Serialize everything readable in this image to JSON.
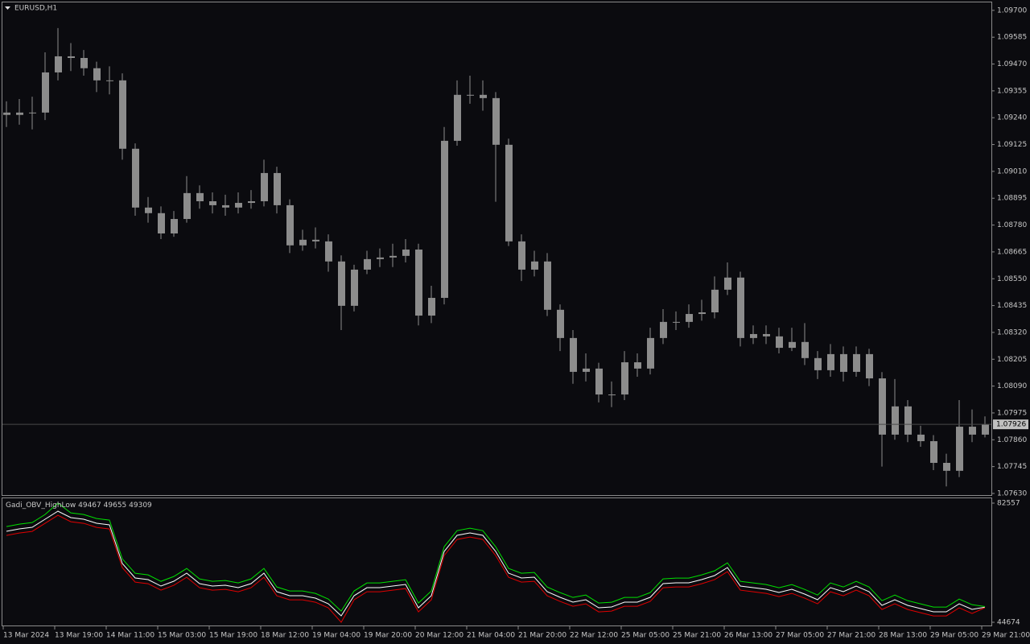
{
  "chart_data": [
    {
      "type": "candlestick",
      "title": "EURUSD,H1",
      "color": "#8c8c8c",
      "price_line_color": "#4a4a4a",
      "categories": [
        "13 Mar 2024",
        null,
        null,
        null,
        "13 Mar 19:00",
        null,
        null,
        null,
        "14 Mar 11:00",
        null,
        null,
        null,
        "15 Mar 03:00",
        null,
        null,
        null,
        "15 Mar 19:00",
        null,
        null,
        null,
        "18 Mar 12:00",
        null,
        null,
        null,
        "19 Mar 04:00",
        null,
        null,
        null,
        "19 Mar 20:00",
        null,
        null,
        null,
        "20 Mar 12:00",
        null,
        null,
        null,
        "21 Mar 04:00",
        null,
        null,
        null,
        "21 Mar 20:00",
        null,
        null,
        null,
        "22 Mar 12:00",
        null,
        null,
        null,
        "25 Mar 05:00",
        null,
        null,
        null,
        "25 Mar 21:00",
        null,
        null,
        null,
        "26 Mar 13:00",
        null,
        null,
        null,
        "27 Mar 05:00",
        null,
        null,
        null,
        "27 Mar 21:00",
        null,
        null,
        null,
        "28 Mar 13:00",
        null,
        null,
        null,
        "29 Mar 05:00",
        null,
        null,
        null,
        "29 Mar 21:00"
      ],
      "open": [
        1.09262,
        1.09252,
        1.09262,
        1.09262,
        1.09434,
        1.09503,
        1.09496,
        1.09452,
        1.094,
        1.094,
        1.09107,
        1.08855,
        1.08831,
        1.08744,
        1.08806,
        1.08917,
        1.08882,
        1.08865,
        1.08855,
        1.08875,
        1.08882,
        1.09003,
        1.08865,
        1.08693,
        1.08717,
        1.0871,
        1.08624,
        1.08434,
        1.08589,
        1.08634,
        1.08641,
        1.08648,
        1.08675,
        1.08392,
        1.08468,
        1.09141,
        1.09338,
        1.09338,
        1.09324,
        1.09124,
        1.0871,
        1.08589,
        1.08624,
        1.08417,
        1.08296,
        1.08151,
        1.08165,
        1.08054,
        1.08054,
        1.08192,
        1.08165,
        1.08296,
        1.08365,
        1.08365,
        1.08399,
        1.08406,
        1.08503,
        1.08555,
        1.08296,
        1.08313,
        1.08303,
        1.08254,
        1.08279,
        1.0821,
        1.08158,
        1.08227,
        1.08151,
        1.08227,
        1.08123,
        1.07882,
        1.08003,
        1.07882,
        1.07854,
        1.07761,
        1.07727,
        1.07916,
        1.07882
      ],
      "high": [
        1.0931,
        1.0932,
        1.0933,
        1.0952,
        1.09624,
        1.0956,
        1.0953,
        1.0948,
        1.0946,
        1.0943,
        1.0913,
        1.089,
        1.0886,
        1.0884,
        1.0899,
        1.0895,
        1.0892,
        1.0891,
        1.0892,
        1.0893,
        1.0906,
        1.0903,
        1.0889,
        1.0876,
        1.0877,
        1.0874,
        1.0865,
        1.0861,
        1.0867,
        1.0868,
        1.087,
        1.0872,
        1.087,
        1.0852,
        1.092,
        1.094,
        1.0942,
        1.094,
        1.0935,
        1.0915,
        1.0874,
        1.0867,
        1.0866,
        1.0844,
        1.0833,
        1.0823,
        1.0819,
        1.0811,
        1.0824,
        1.0823,
        1.0834,
        1.0842,
        1.0841,
        1.0844,
        1.0846,
        1.0856,
        1.0862,
        1.0858,
        1.0835,
        1.0835,
        1.0834,
        1.0834,
        1.0836,
        1.0824,
        1.0827,
        1.0826,
        1.0826,
        1.0825,
        1.0815,
        1.0812,
        1.0803,
        1.0792,
        1.0788,
        1.078,
        1.0803,
        1.0799,
        1.0796
      ],
      "low": [
        1.092,
        1.0921,
        1.0919,
        1.0923,
        1.094,
        1.0944,
        1.0942,
        1.0935,
        1.0934,
        1.0906,
        1.0882,
        1.0879,
        1.0872,
        1.0873,
        1.0879,
        1.0885,
        1.0883,
        1.0882,
        1.0883,
        1.0885,
        1.0886,
        1.0883,
        1.0866,
        1.0867,
        1.0868,
        1.0858,
        1.0833,
        1.0841,
        1.0857,
        1.086,
        1.086,
        1.0862,
        1.0835,
        1.0836,
        1.0844,
        1.0912,
        1.093,
        1.0927,
        1.0888,
        1.0869,
        1.0854,
        1.0856,
        1.0839,
        1.0824,
        1.081,
        1.0811,
        1.0802,
        1.08,
        1.0803,
        1.0813,
        1.0814,
        1.0827,
        1.0833,
        1.0834,
        1.0837,
        1.0838,
        1.0848,
        1.0826,
        1.0827,
        1.0827,
        1.0823,
        1.0824,
        1.0818,
        1.0812,
        1.0813,
        1.0811,
        1.0813,
        1.0809,
        1.07745,
        1.0786,
        1.0785,
        1.0783,
        1.0773,
        1.0766,
        1.077,
        1.0785,
        1.0787
      ],
      "close": [
        1.09252,
        1.09262,
        1.09262,
        1.09434,
        1.09503,
        1.09496,
        1.09452,
        1.094,
        1.094,
        1.09107,
        1.08855,
        1.08831,
        1.08744,
        1.08806,
        1.08917,
        1.08882,
        1.08865,
        1.08855,
        1.08875,
        1.08882,
        1.09003,
        1.08865,
        1.08693,
        1.08717,
        1.0871,
        1.08624,
        1.08434,
        1.08589,
        1.08634,
        1.08641,
        1.08648,
        1.08675,
        1.08392,
        1.08468,
        1.09141,
        1.09338,
        1.09338,
        1.09324,
        1.09124,
        1.0871,
        1.08589,
        1.08624,
        1.08417,
        1.08296,
        1.08151,
        1.08165,
        1.08054,
        1.08054,
        1.08192,
        1.08165,
        1.08296,
        1.08365,
        1.08365,
        1.08399,
        1.08406,
        1.08503,
        1.08555,
        1.08296,
        1.08313,
        1.08303,
        1.08254,
        1.08279,
        1.0821,
        1.08158,
        1.08227,
        1.08151,
        1.08227,
        1.08123,
        1.07882,
        1.08003,
        1.07882,
        1.07854,
        1.07761,
        1.07727,
        1.07916,
        1.07882,
        1.07926
      ],
      "ylim": [
        1.07623,
        1.09734
      ],
      "yticks": [
        {
          "value": 1.097,
          "label": "1.09700"
        },
        1.09585,
        {
          "value": 1.0947,
          "label": "1.09470"
        },
        1.09355,
        {
          "value": 1.0924,
          "label": "1.09240"
        },
        1.09125,
        {
          "value": 1.0901,
          "label": "1.09010"
        },
        1.08895,
        {
          "value": 1.0878,
          "label": "1.08780"
        },
        1.08665,
        {
          "value": 1.0855,
          "label": "1.08550"
        },
        1.08435,
        {
          "value": 1.0832,
          "label": "1.08320"
        },
        1.08205,
        {
          "value": 1.0809,
          "label": "1.08090"
        },
        1.07975,
        {
          "value": 1.0786,
          "label": "1.07860"
        },
        1.07745,
        {
          "value": 1.0763,
          "label": "1.07630"
        }
      ]
    },
    {
      "type": "line",
      "title": "Gadi_OBV_HighLow",
      "series": [
        {
          "name": "OBV",
          "color": "#ffffff",
          "values": [
            73597,
            74365,
            74877,
            77437,
            79997,
            77949,
            77437,
            76157,
            75645,
            63357,
            58749,
            58237,
            56189,
            57725,
            60285,
            56957,
            56189,
            56445,
            55677,
            56957,
            60285,
            54397,
            53117,
            53117,
            52349,
            50557,
            46717,
            53117,
            55677,
            55677,
            56189,
            56701,
            49277,
            53117,
            67197,
            72317,
            73085,
            72317,
            67197,
            60285,
            58749,
            59005,
            54397,
            52605,
            51069,
            51837,
            49277,
            49533,
            51069,
            51069,
            52605,
            56957,
            57213,
            57213,
            58237,
            59517,
            62077,
            56189,
            55677,
            55165,
            54141,
            55165,
            53629,
            51837,
            55677,
            54397,
            56189,
            54397,
            50045,
            51837,
            50045,
            49021,
            47997,
            47997,
            50557,
            48765,
            49467
          ]
        },
        {
          "name": "High",
          "color": "#00e000",
          "values": [
            75097,
            75865,
            76377,
            78937,
            82557,
            79449,
            78937,
            77657,
            77145,
            64857,
            60249,
            59737,
            57689,
            59225,
            61785,
            58457,
            57689,
            57945,
            57177,
            58457,
            61785,
            55897,
            54617,
            54617,
            53849,
            52057,
            48217,
            54617,
            57177,
            57177,
            57689,
            58201,
            50777,
            54617,
            68697,
            73817,
            74585,
            73817,
            68697,
            61785,
            60249,
            60505,
            55897,
            54105,
            52569,
            53337,
            50777,
            51033,
            52569,
            52569,
            54105,
            58457,
            58713,
            58713,
            59737,
            61017,
            63577,
            57689,
            57177,
            56665,
            55641,
            56665,
            55129,
            53337,
            57177,
            55897,
            57689,
            55897,
            51545,
            53337,
            51545,
            50521,
            49497,
            49497,
            52057,
            50265,
            49655
          ]
        },
        {
          "name": "Low",
          "color": "#e00000",
          "values": [
            72297,
            73065,
            73577,
            76137,
            78697,
            76649,
            76137,
            74857,
            74345,
            62057,
            57449,
            56937,
            54889,
            56425,
            58985,
            55657,
            54889,
            55145,
            54377,
            55657,
            58985,
            53097,
            51817,
            51817,
            51049,
            49257,
            44674,
            51817,
            54377,
            54377,
            54889,
            55401,
            47977,
            51817,
            65897,
            71017,
            71785,
            71017,
            65897,
            58985,
            57449,
            57705,
            53097,
            51305,
            49769,
            50537,
            47977,
            48233,
            49769,
            49769,
            51305,
            55657,
            55913,
            55913,
            56937,
            58217,
            60777,
            54889,
            54377,
            53865,
            52841,
            53865,
            52329,
            50537,
            54377,
            53097,
            54889,
            53097,
            48745,
            50537,
            48745,
            47721,
            46697,
            46697,
            49257,
            47465,
            49309
          ]
        }
      ],
      "ylim": [
        44674,
        82557
      ],
      "yticks": [
        82557,
        44674
      ]
    }
  ]
}
